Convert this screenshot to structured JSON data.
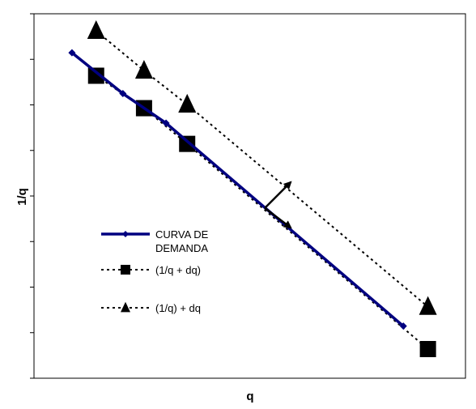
{
  "chart_data": {
    "type": "line",
    "xlabel": "q",
    "ylabel": "1/q",
    "xlim": [
      0,
      100
    ],
    "ylim": [
      0,
      100
    ],
    "grid": false,
    "legend_position": "center-left",
    "show_tick_labels": false,
    "series": [
      {
        "name": "CURVA DE DEMANDA",
        "marker": "diamond",
        "line_style": "solid",
        "color": "#000080",
        "x": [
          8.8,
          20.6,
          30.6,
          85.6
        ],
        "y": [
          89.3,
          78.1,
          70.0,
          14.3
        ]
      },
      {
        "name": "(1/q + dq)",
        "marker": "square",
        "line_style": "dotted",
        "color": "#000000",
        "x": [
          14.4,
          25.5,
          35.5,
          91.3
        ],
        "y": [
          83.0,
          74.1,
          64.3,
          8.0
        ]
      },
      {
        "name": "(1/q) + dq",
        "marker": "triangle",
        "line_style": "dotted",
        "color": "#000000",
        "x": [
          14.4,
          25.5,
          35.5,
          91.3
        ],
        "y": [
          95.3,
          84.4,
          75.1,
          19.6
        ]
      }
    ],
    "annotations": [
      {
        "type": "arrow",
        "from": [
          53.5,
          46.7
        ],
        "to": [
          59.5,
          53.8
        ]
      },
      {
        "type": "arrow",
        "from": [
          53.5,
          46.7
        ],
        "to": [
          59.5,
          41.3
        ]
      }
    ],
    "legend": {
      "entries": [
        {
          "lines": [
            "CURVA DE",
            "DEMANDA"
          ]
        },
        {
          "lines": [
            "(1/q + dq)"
          ]
        },
        {
          "lines": [
            "(1/q) + dq"
          ]
        }
      ]
    },
    "y_ticks_count": 8,
    "x_ticks_count": 0
  }
}
